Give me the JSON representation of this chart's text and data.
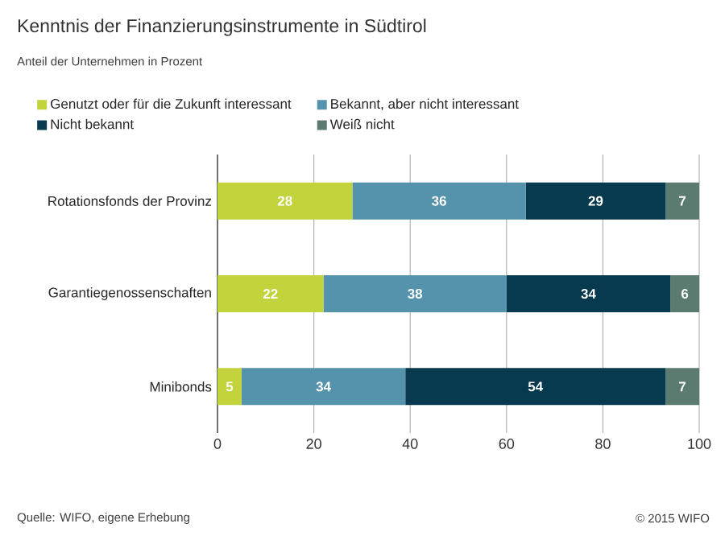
{
  "chart_data": {
    "type": "bar",
    "orientation": "horizontal",
    "stacked": true,
    "title": "Kenntnis der Finanzierungsinstrumente in Südtirol",
    "subtitle": "Anteil der Unternehmen in Prozent",
    "categories": [
      "Rotationsfonds der Provinz",
      "Garantiegenossenschaften",
      "Minibonds"
    ],
    "series": [
      {
        "name": "Genutzt oder für die Zukunft interessant",
        "color": "#c2d33c",
        "values": [
          28,
          22,
          5
        ]
      },
      {
        "name": "Bekannt, aber nicht interessant",
        "color": "#5592ab",
        "values": [
          36,
          38,
          34
        ]
      },
      {
        "name": "Nicht bekannt",
        "color": "#073a4e",
        "values": [
          29,
          34,
          54
        ]
      },
      {
        "name": "Weiß nicht",
        "color": "#5c7b70",
        "values": [
          7,
          6,
          7
        ]
      }
    ],
    "xlim": [
      0,
      100
    ],
    "xticks": [
      0,
      20,
      40,
      60,
      80,
      100
    ],
    "grid": "x",
    "legend": "top",
    "data_labels": true,
    "annotations": [
      "Quelle: WIFO, eigene Erhebung",
      "© 2015 WIFO"
    ]
  }
}
